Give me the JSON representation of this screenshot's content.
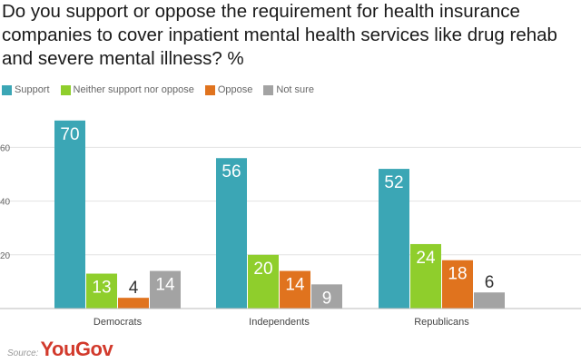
{
  "chart_data": {
    "type": "bar",
    "title": "Do you support or oppose the requirement for health insurance companies to cover inpatient mental health services like drug rehab and severe mental illness? %",
    "categories": [
      "Democrats",
      "Independents",
      "Republicans"
    ],
    "series": [
      {
        "name": "Support",
        "color": "#3ba6b5",
        "values": [
          70,
          56,
          52
        ]
      },
      {
        "name": "Neither support nor oppose",
        "color": "#8fce2c",
        "values": [
          13,
          20,
          24
        ]
      },
      {
        "name": "Oppose",
        "color": "#e0731e",
        "values": [
          4,
          14,
          18
        ]
      },
      {
        "name": "Not sure",
        "color": "#a3a3a3",
        "values": [
          14,
          9,
          6
        ]
      }
    ],
    "yticks": [
      20,
      40,
      60
    ],
    "ytick_labels": [
      "20",
      "40",
      "60"
    ],
    "ylim": [
      0,
      80
    ],
    "grid": true,
    "legend": "top-left",
    "xlabel": "",
    "ylabel": ""
  },
  "source": {
    "label": "Source:",
    "brand": "YouGov"
  }
}
